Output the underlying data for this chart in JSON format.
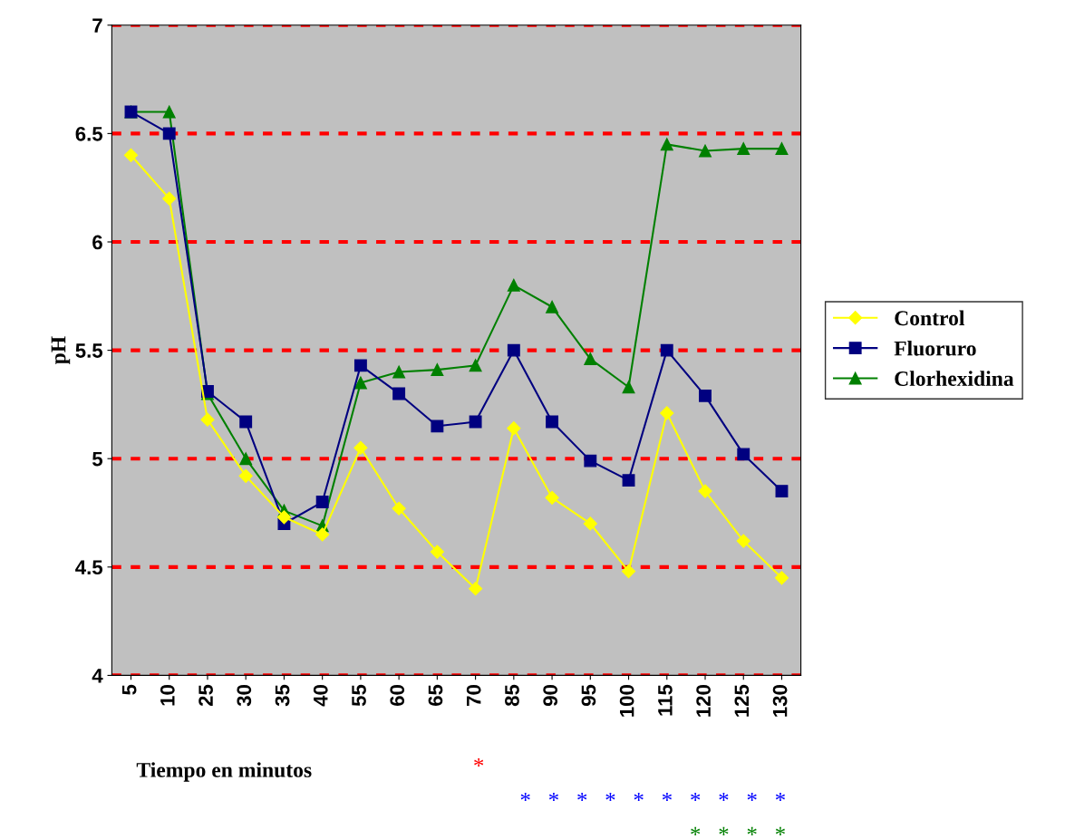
{
  "chart_data": {
    "type": "line",
    "xlabel": "Tiempo en minutos",
    "ylabel": "pH",
    "categories": [
      "5",
      "10",
      "25",
      "30",
      "35",
      "40",
      "55",
      "60",
      "65",
      "70",
      "85",
      "90",
      "95",
      "100",
      "115",
      "120",
      "125",
      "130"
    ],
    "series": [
      {
        "name": "Control",
        "color": "#ffff00",
        "marker": "diamond",
        "values": [
          6.4,
          6.2,
          5.18,
          4.92,
          4.73,
          4.65,
          5.05,
          4.77,
          4.57,
          4.4,
          5.14,
          4.82,
          4.7,
          4.48,
          5.21,
          4.85,
          4.62,
          4.45
        ]
      },
      {
        "name": "Fluoruro",
        "color": "#000080",
        "marker": "square",
        "values": [
          6.6,
          6.5,
          5.31,
          5.17,
          4.7,
          4.8,
          5.43,
          5.3,
          5.15,
          5.17,
          5.5,
          5.17,
          4.99,
          4.9,
          5.5,
          5.29,
          5.02,
          4.85
        ]
      },
      {
        "name": "Clorhexidina",
        "color": "#008000",
        "marker": "triangle",
        "values": [
          6.6,
          6.6,
          5.3,
          5.0,
          4.76,
          4.69,
          5.35,
          5.4,
          5.41,
          5.43,
          5.8,
          5.7,
          5.46,
          5.33,
          6.45,
          6.42,
          6.43,
          6.43
        ]
      }
    ],
    "ylim": [
      4,
      7
    ],
    "yticks": [
      4,
      4.5,
      5,
      5.5,
      6,
      6.5,
      7
    ],
    "grid": "y",
    "legend": "right",
    "line_style": "solid",
    "annotations": [
      "*",
      "*   *   *   *   *   *   *   *   *   *",
      "*   *   *   *"
    ]
  }
}
